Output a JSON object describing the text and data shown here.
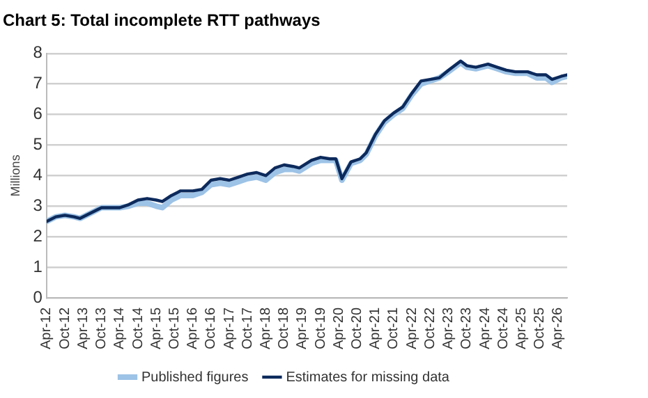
{
  "chart_data": {
    "type": "line",
    "title": "Chart 5: Total incomplete RTT pathways",
    "ylabel": "Millions",
    "xlim": [
      "2012-04",
      "2026-07"
    ],
    "xticks": [
      {
        "value": "2012-04",
        "label": "Apr-12"
      },
      {
        "value": "2012-10",
        "label": "Oct-12"
      },
      {
        "value": "2013-04",
        "label": "Apr-13"
      },
      {
        "value": "2013-10",
        "label": "Oct-13"
      },
      {
        "value": "2014-04",
        "label": "Apr-14"
      },
      {
        "value": "2014-10",
        "label": "Oct-14"
      },
      {
        "value": "2015-04",
        "label": "Apr-15"
      },
      {
        "value": "2015-10",
        "label": "Oct-15"
      },
      {
        "value": "2016-04",
        "label": "Apr-16"
      },
      {
        "value": "2016-10",
        "label": "Oct-16"
      },
      {
        "value": "2017-04",
        "label": "Apr-17"
      },
      {
        "value": "2017-10",
        "label": "Oct-17"
      },
      {
        "value": "2018-04",
        "label": "Apr-18"
      },
      {
        "value": "2018-10",
        "label": "Oct-18"
      },
      {
        "value": "2019-04",
        "label": "Apr-19"
      },
      {
        "value": "2019-10",
        "label": "Oct-19"
      },
      {
        "value": "2020-04",
        "label": "Apr-20"
      },
      {
        "value": "2020-10",
        "label": "Oct-20"
      },
      {
        "value": "2021-04",
        "label": "Apr-21"
      },
      {
        "value": "2021-10",
        "label": "Oct-21"
      },
      {
        "value": "2022-04",
        "label": "Apr-22"
      },
      {
        "value": "2022-10",
        "label": "Oct-22"
      },
      {
        "value": "2023-04",
        "label": "Apr-23"
      },
      {
        "value": "2023-10",
        "label": "Oct-23"
      },
      {
        "value": "2024-04",
        "label": "Apr-24"
      },
      {
        "value": "2024-10",
        "label": "Oct-24"
      },
      {
        "value": "2025-04",
        "label": "Apr-25"
      },
      {
        "value": "2025-10",
        "label": "Oct-25"
      },
      {
        "value": "2026-04",
        "label": "Apr-26"
      }
    ],
    "ylim": [
      0,
      8
    ],
    "yticks": [
      0,
      1,
      2,
      3,
      4,
      5,
      6,
      7,
      8
    ],
    "grid": "y",
    "legend": "bottom",
    "marker": "none",
    "line_style": "solid",
    "x": [
      "2012-04",
      "2012-07",
      "2012-10",
      "2013-01",
      "2013-03",
      "2013-07",
      "2013-10",
      "2014-01",
      "2014-04",
      "2014-07",
      "2014-10",
      "2015-01",
      "2015-04",
      "2015-06",
      "2015-09",
      "2015-12",
      "2016-04",
      "2016-07",
      "2016-10",
      "2017-01",
      "2017-04",
      "2017-07",
      "2017-10",
      "2018-01",
      "2018-04",
      "2018-07",
      "2018-10",
      "2019-01",
      "2019-03",
      "2019-07",
      "2019-10",
      "2020-01",
      "2020-03",
      "2020-05",
      "2020-08",
      "2020-11",
      "2021-01",
      "2021-04",
      "2021-07",
      "2021-10",
      "2022-01",
      "2022-04",
      "2022-07",
      "2022-10",
      "2023-01",
      "2023-04",
      "2023-08",
      "2023-10",
      "2024-01",
      "2024-05",
      "2024-08",
      "2024-11",
      "2025-02",
      "2025-06",
      "2025-09",
      "2025-12",
      "2026-02",
      "2026-05",
      "2026-07"
    ],
    "series": [
      {
        "name": "Published figures",
        "color": "#9dc3e6",
        "values": [
          2.5,
          2.65,
          2.7,
          2.65,
          2.6,
          2.8,
          2.95,
          2.95,
          2.95,
          3.0,
          3.1,
          3.1,
          3.0,
          2.95,
          3.2,
          3.35,
          3.35,
          3.45,
          3.7,
          3.75,
          3.7,
          3.8,
          3.9,
          3.95,
          3.85,
          4.1,
          4.2,
          4.2,
          4.15,
          4.4,
          4.5,
          4.5,
          4.5,
          3.85,
          4.4,
          4.5,
          4.7,
          5.3,
          5.75,
          6.0,
          6.2,
          6.65,
          7.0,
          7.1,
          7.2,
          7.4,
          7.7,
          7.55,
          7.5,
          7.6,
          7.5,
          7.4,
          7.35,
          7.35,
          7.2,
          7.2,
          7.05,
          7.2,
          7.25
        ]
      },
      {
        "name": "Estimates for missing data",
        "color": "#0d2a5c",
        "values": [
          2.5,
          2.65,
          2.7,
          2.65,
          2.6,
          2.8,
          2.95,
          2.95,
          2.95,
          3.05,
          3.2,
          3.25,
          3.2,
          3.15,
          3.35,
          3.5,
          3.5,
          3.55,
          3.85,
          3.9,
          3.85,
          3.95,
          4.05,
          4.1,
          4.0,
          4.25,
          4.35,
          4.3,
          4.25,
          4.5,
          4.6,
          4.55,
          4.55,
          3.9,
          4.45,
          4.55,
          4.75,
          5.35,
          5.8,
          6.05,
          6.25,
          6.7,
          7.1,
          7.15,
          7.2,
          7.45,
          7.75,
          7.6,
          7.55,
          7.65,
          7.55,
          7.45,
          7.4,
          7.4,
          7.3,
          7.3,
          7.15,
          7.25,
          7.3
        ]
      }
    ]
  }
}
